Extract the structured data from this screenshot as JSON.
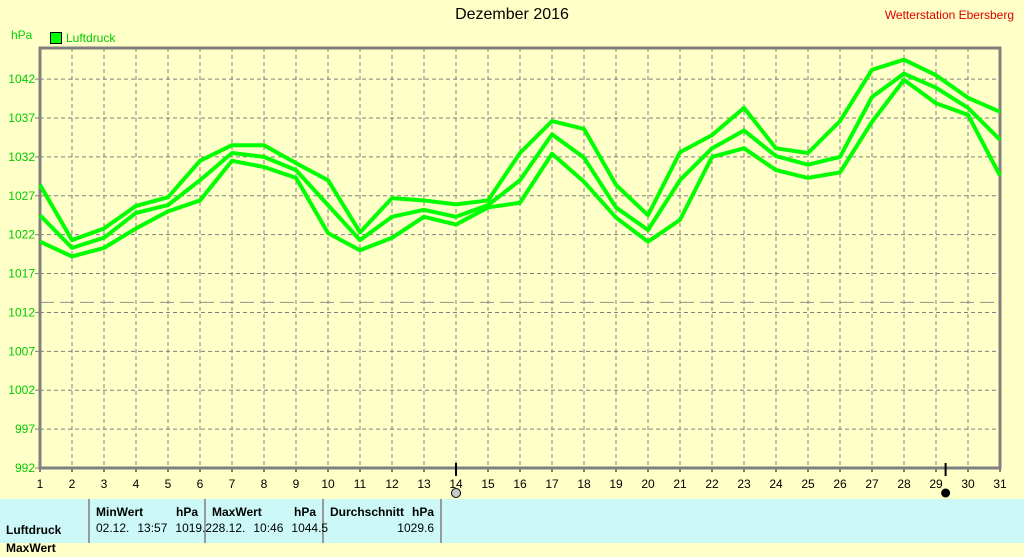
{
  "title": "Dezember 2016",
  "station": "Wetterstation Ebersberg",
  "chart_data": {
    "type": "line",
    "title": "Dezember 2016",
    "ylabel": "hPa",
    "legend": [
      "Luftdruck"
    ],
    "legend_placement": "top-left",
    "grid": true,
    "color": "#00ff00",
    "x": [
      1,
      2,
      3,
      4,
      5,
      6,
      7,
      8,
      9,
      10,
      11,
      12,
      13,
      14,
      15,
      16,
      17,
      18,
      19,
      20,
      21,
      22,
      23,
      24,
      25,
      26,
      27,
      28,
      29,
      30,
      31
    ],
    "xlim": [
      1,
      31
    ],
    "ylim": [
      992,
      1046
    ],
    "yticks": [
      992,
      997,
      1002,
      1007,
      1012,
      1017,
      1022,
      1027,
      1032,
      1037,
      1042
    ],
    "reference_line": 1013.3,
    "markers": {
      "open_circle_day": 14,
      "filled_circle_day": 29.3
    },
    "series": [
      {
        "values": [
          1028.4,
          1021.3,
          1022.8,
          1025.7,
          1026.8,
          1031.5,
          1033.5,
          1033.5,
          1031.2,
          1029,
          1022.3,
          1026.7,
          1026.4,
          1025.9,
          1026.4,
          1032.5,
          1036.6,
          1035.6,
          1028.4,
          1024.5,
          1032.6,
          1034.8,
          1038.3,
          1033.1,
          1032.5,
          1036.6,
          1043.2,
          1044.5,
          1042.5,
          1039.6,
          1037.8
        ]
      },
      {
        "values": [
          1024.5,
          1020.3,
          1021.6,
          1024.8,
          1025.8,
          1029,
          1032.5,
          1032,
          1030.3,
          1025.8,
          1021.3,
          1024.3,
          1025.2,
          1024.3,
          1025.8,
          1029,
          1034.9,
          1031.9,
          1025.5,
          1022.6,
          1029,
          1033.1,
          1035.4,
          1032.1,
          1031,
          1032,
          1039.7,
          1042.7,
          1040.9,
          1038.3,
          1034.2
        ]
      },
      {
        "values": [
          1021.1,
          1019.2,
          1020.3,
          1022.8,
          1025,
          1026.4,
          1031.5,
          1030.7,
          1029.3,
          1022.2,
          1020,
          1021.6,
          1024.3,
          1023.3,
          1025.5,
          1026.1,
          1032.4,
          1028.8,
          1024.2,
          1021.1,
          1023.9,
          1032,
          1033.1,
          1030.3,
          1029.3,
          1030,
          1036.5,
          1041.9,
          1038.9,
          1037.4,
          1029.6
        ]
      }
    ]
  },
  "table": {
    "row_label": "Luftdruck",
    "row2_label": "MaxWert",
    "min": {
      "header": "MinWert",
      "unit": "hPa",
      "date": "02.12.",
      "time": "13:57",
      "value": "1019.2"
    },
    "max": {
      "header": "MaxWert",
      "unit": "hPa",
      "date": "28.12.",
      "time": "10:46",
      "value": "1044.5"
    },
    "avg": {
      "header": "Durchschnitt",
      "unit": "hPa",
      "value": "1029.6"
    }
  }
}
